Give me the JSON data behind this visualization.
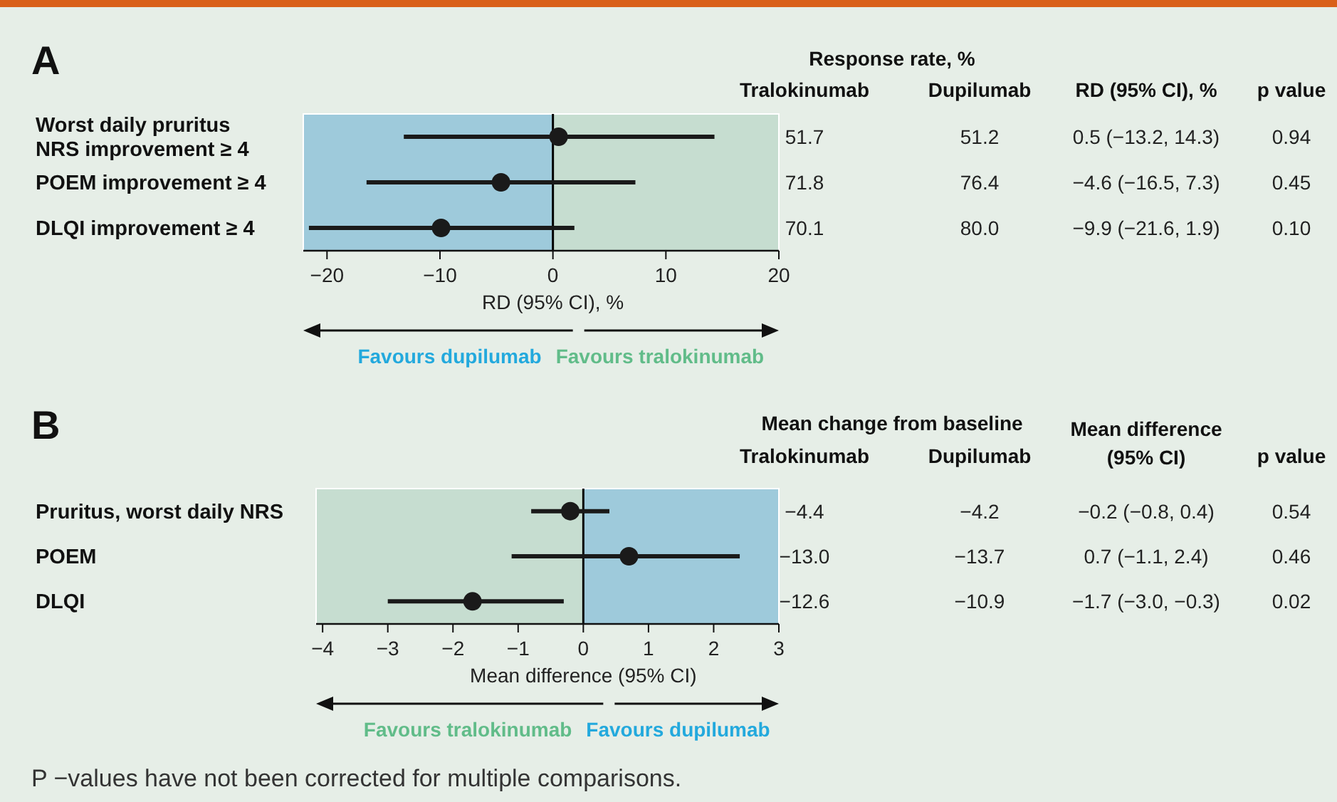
{
  "chart_data": [
    {
      "type": "scatter",
      "title": "A",
      "orientation": "horizontal",
      "marker": "circle",
      "xlabel": "RD (95% CI), %",
      "categories": [
        "Worst daily pruritus\nNRS improvement ≥ 4",
        "POEM improvement ≥ 4",
        "DLQI improvement ≥ 4"
      ],
      "xlim": [
        -22.1,
        20
      ],
      "xticks": [
        -20,
        -10,
        0,
        10,
        20
      ],
      "series": [
        {
          "color": "#1a1a1a",
          "values": [
            0.5,
            -4.6,
            -9.9
          ],
          "errors": [
            [
              -13.2,
              14.3
            ],
            [
              -16.5,
              7.3
            ],
            [
              -21.6,
              1.9
            ]
          ],
          "value_labels": [
            "0.5 (−13.2, 14.3)",
            "−4.6 (−16.5, 7.3)",
            "−9.9 (−21.6, 1.9)"
          ]
        }
      ],
      "bands": [
        {
          "axis": "x",
          "from": -22.1,
          "to": 0,
          "color": "#9ecadb"
        },
        {
          "axis": "x",
          "from": 0,
          "to": 20,
          "color": "#c6ddd0"
        }
      ],
      "ref_lines": [
        {
          "axis": "x",
          "value": 0,
          "color": "#000000"
        }
      ],
      "annotations": [
        "Favours dupilumab",
        "Favours tralokinumab",
        "Response rate, %",
        "Tralokinumab",
        "Dupilumab",
        "RD (95% CI), %",
        "p value",
        "51.7",
        "51.2",
        "0.94",
        "71.8",
        "76.4",
        "0.45",
        "70.1",
        "80.0",
        "0.10"
      ]
    },
    {
      "type": "scatter",
      "title": "B",
      "orientation": "horizontal",
      "marker": "circle",
      "xlabel": "Mean difference (95% CI)",
      "categories": [
        "Pruritus, worst daily NRS",
        "POEM",
        "DLQI"
      ],
      "xlim": [
        -4.1,
        3
      ],
      "xticks": [
        -4,
        -3,
        -2,
        -1,
        0,
        1,
        2,
        3
      ],
      "series": [
        {
          "color": "#1a1a1a",
          "values": [
            -0.2,
            0.7,
            -1.7
          ],
          "errors": [
            [
              -0.8,
              0.4
            ],
            [
              -1.1,
              2.4
            ],
            [
              -3.0,
              -0.3
            ]
          ],
          "value_labels": [
            "−0.2 (−0.8, 0.4)",
            "0.7 (−1.1, 2.4)",
            "−1.7 (−3.0, −0.3)"
          ]
        }
      ],
      "bands": [
        {
          "axis": "x",
          "from": -4.1,
          "to": 0,
          "color": "#c6ddd0"
        },
        {
          "axis": "x",
          "from": 0,
          "to": 3,
          "color": "#9ecadb"
        }
      ],
      "ref_lines": [
        {
          "axis": "x",
          "value": 0,
          "color": "#000000"
        }
      ],
      "annotations": [
        "Favours tralokinumab",
        "Favours dupilumab",
        "Mean change from baseline",
        "Tralokinumab",
        "Dupilumab",
        "Mean difference\n(95% CI)",
        "p value",
        "−4.4",
        "−4.2",
        "0.54",
        "−13.0",
        "−13.7",
        "0.46",
        "−12.6",
        "−10.9",
        "0.02",
        "P −values have not been corrected for multiple comparisons."
      ]
    }
  ]
}
